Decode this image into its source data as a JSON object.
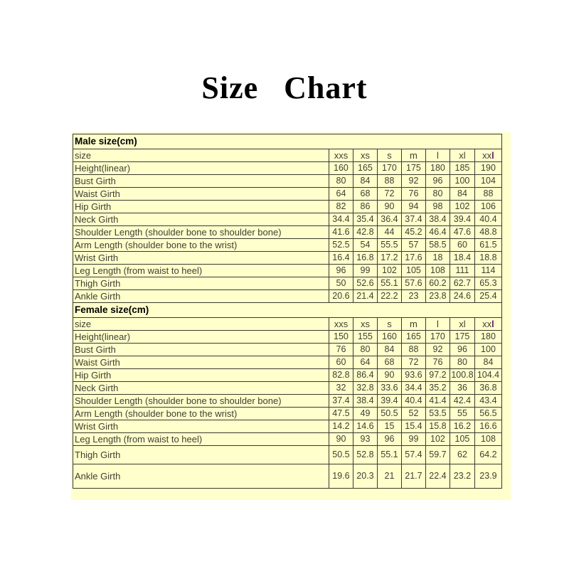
{
  "title": "Size Chart",
  "colors": {
    "table_background": "#ffffcc",
    "border": "#3a3a30",
    "text": "#3f3f33",
    "section_header_text": "#000000",
    "xxl_accent": "#701b66"
  },
  "table": {
    "size_label": "size",
    "size_headers": [
      "xxs",
      "xs",
      "s",
      "m",
      "l",
      "xl",
      "xxl"
    ],
    "sections": [
      {
        "header": "Male size(cm)",
        "rows": [
          {
            "label": "Height(linear)",
            "values": [
              "160",
              "165",
              "170",
              "175",
              "180",
              "185",
              "190"
            ]
          },
          {
            "label": "Bust Girth",
            "values": [
              "80",
              "84",
              "88",
              "92",
              "96",
              "100",
              "104"
            ]
          },
          {
            "label": "Waist Girth",
            "values": [
              "64",
              "68",
              "72",
              "76",
              "80",
              "84",
              "88"
            ]
          },
          {
            "label": "Hip Girth",
            "values": [
              "82",
              "86",
              "90",
              "94",
              "98",
              "102",
              "106"
            ]
          },
          {
            "label": "Neck Girth",
            "values": [
              "34.4",
              "35.4",
              "36.4",
              "37.4",
              "38.4",
              "39.4",
              "40.4"
            ]
          },
          {
            "label": "Shoulder Length (shoulder bone to shoulder bone)",
            "values": [
              "41.6",
              "42.8",
              "44",
              "45.2",
              "46.4",
              "47.6",
              "48.8"
            ]
          },
          {
            "label": "Arm Length (shoulder bone to the wrist)",
            "values": [
              "52.5",
              "54",
              "55.5",
              "57",
              "58.5",
              "60",
              "61.5"
            ]
          },
          {
            "label": "Wrist Girth",
            "values": [
              "16.4",
              "16.8",
              "17.2",
              "17.6",
              "18",
              "18.4",
              "18.8"
            ]
          },
          {
            "label": "Leg Length (from waist to heel)",
            "values": [
              "96",
              "99",
              "102",
              "105",
              "108",
              "111",
              "114"
            ]
          },
          {
            "label": "Thigh Girth",
            "values": [
              "50",
              "52.6",
              "55.1",
              "57.6",
              "60.2",
              "62.7",
              "65.3"
            ]
          },
          {
            "label": "Ankle Girth",
            "values": [
              "20.6",
              "21.4",
              "22.2",
              "23",
              "23.8",
              "24.6",
              "25.4"
            ]
          }
        ]
      },
      {
        "header": "Female size(cm)",
        "rows": [
          {
            "label": "Height(linear)",
            "values": [
              "150",
              "155",
              "160",
              "165",
              "170",
              "175",
              "180"
            ]
          },
          {
            "label": "Bust Girth",
            "values": [
              "76",
              "80",
              "84",
              "88",
              "92",
              "96",
              "100"
            ]
          },
          {
            "label": "Waist Girth",
            "values": [
              "60",
              "64",
              "68",
              "72",
              "76",
              "80",
              "84"
            ]
          },
          {
            "label": "Hip Girth",
            "values": [
              "82.8",
              "86.4",
              "90",
              "93.6",
              "97.2",
              "100.8",
              "104.4"
            ]
          },
          {
            "label": "Neck Girth",
            "values": [
              "32",
              "32.8",
              "33.6",
              "34.4",
              "35.2",
              "36",
              "36.8"
            ]
          },
          {
            "label": "Shoulder Length (shoulder bone to shoulder bone)",
            "values": [
              "37.4",
              "38.4",
              "39.4",
              "40.4",
              "41.4",
              "42.4",
              "43.4"
            ]
          },
          {
            "label": "Arm Length (shoulder bone to the wrist)",
            "values": [
              "47.5",
              "49",
              "50.5",
              "52",
              "53.5",
              "55",
              "56.5"
            ]
          },
          {
            "label": "Wrist Girth",
            "values": [
              "14.2",
              "14.6",
              "15",
              "15.4",
              "15.8",
              "16.2",
              "16.6"
            ]
          },
          {
            "label": "Leg Length (from waist to heel)",
            "values": [
              "90",
              "93",
              "96",
              "99",
              "102",
              "105",
              "108"
            ]
          },
          {
            "label": "Thigh Girth",
            "values": [
              "50.5",
              "52.8",
              "55.1",
              "57.4",
              "59.7",
              "62",
              "64.2"
            ]
          },
          {
            "label": "Ankle Girth",
            "values": [
              "19.6",
              "20.3",
              "21",
              "21.7",
              "22.4",
              "23.2",
              "23.9"
            ]
          }
        ]
      }
    ]
  }
}
